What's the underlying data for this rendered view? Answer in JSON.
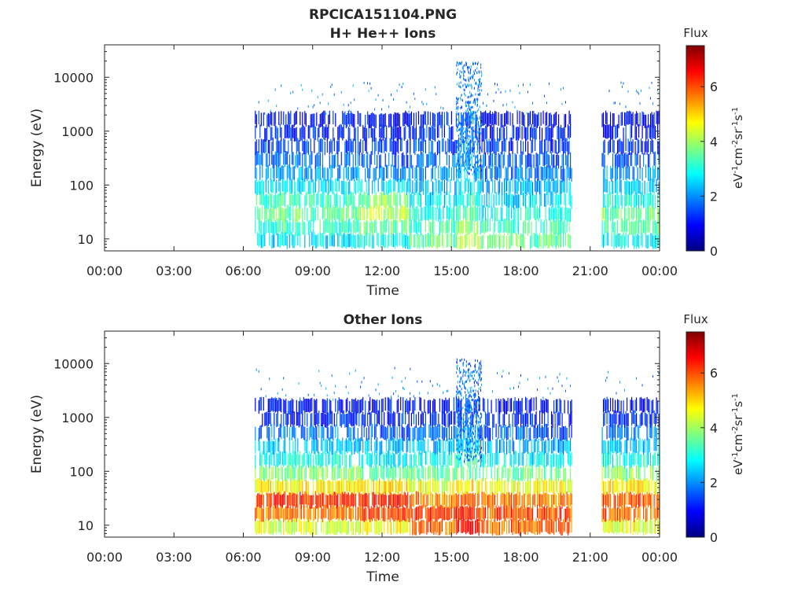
{
  "figure": {
    "title_line1": "RPCICA151104.PNG"
  },
  "colormap": {
    "name": "jet",
    "stops": [
      "#00007f",
      "#0000ff",
      "#007fff",
      "#00ffff",
      "#7fff7f",
      "#ffff00",
      "#ff7f00",
      "#ff0000",
      "#7f0000"
    ]
  },
  "chart_data": [
    {
      "type": "heatmap",
      "title": "H+ He++ Ions",
      "xlabel": "Time",
      "ylabel": "Energy (eV)",
      "x_tick_labels": [
        "00:00",
        "03:00",
        "06:00",
        "09:00",
        "12:00",
        "15:00",
        "18:00",
        "21:00",
        "00:00"
      ],
      "x_range_hours": [
        0,
        24
      ],
      "y_scale": "log",
      "y_tick_values": [
        10,
        100,
        1000,
        10000
      ],
      "y_tick_labels": [
        "10",
        "100",
        "1000",
        "10000"
      ],
      "y_range": [
        6,
        40000
      ],
      "colorbar": {
        "title": "Flux",
        "unit_label": "eV-1cm-2sr-1s-1",
        "ticks": [
          0,
          2,
          4,
          6
        ],
        "tick_labels": [
          "0",
          "2",
          "4",
          "6"
        ],
        "range": [
          0,
          7.5
        ]
      },
      "data_gaps_hours": [
        [
          0,
          6.5
        ],
        [
          20.2,
          21.5
        ]
      ],
      "data_segments": [
        {
          "start": 6.5,
          "end": 11.0,
          "levels": [
            2.6,
            3.2,
            3.6,
            3.3,
            2.6,
            2.1,
            1.8,
            1.5,
            1.2,
            1.0
          ]
        },
        {
          "start": 11.0,
          "end": 13.2,
          "levels": [
            2.8,
            3.6,
            4.2,
            3.8,
            2.6,
            2.0,
            1.6,
            1.3,
            1.1,
            1.0
          ]
        },
        {
          "start": 13.2,
          "end": 15.2,
          "levels": [
            3.6,
            3.3,
            3.0,
            2.6,
            2.2,
            2.0,
            1.8,
            1.6,
            1.4,
            1.2
          ]
        },
        {
          "start": 15.2,
          "end": 16.2,
          "levels": [
            4.4,
            3.8,
            3.4,
            3.0,
            2.6,
            2.4,
            2.2,
            2.0,
            1.8,
            1.6
          ]
        },
        {
          "start": 16.2,
          "end": 20.2,
          "levels": [
            3.6,
            3.3,
            3.0,
            2.6,
            2.2,
            1.9,
            1.6,
            1.3,
            1.1,
            0.9
          ]
        },
        {
          "start": 21.5,
          "end": 24.0,
          "levels": [
            2.8,
            3.4,
            3.6,
            3.0,
            2.4,
            2.0,
            1.6,
            1.3,
            1.1,
            0.9
          ]
        }
      ]
    },
    {
      "type": "heatmap",
      "title": "Other Ions",
      "xlabel": "Time",
      "ylabel": "Energy (eV)",
      "x_tick_labels": [
        "00:00",
        "03:00",
        "06:00",
        "09:00",
        "12:00",
        "15:00",
        "18:00",
        "21:00",
        "00:00"
      ],
      "x_range_hours": [
        0,
        24
      ],
      "y_scale": "log",
      "y_tick_values": [
        10,
        100,
        1000,
        10000
      ],
      "y_tick_labels": [
        "10",
        "100",
        "1000",
        "10000"
      ],
      "y_range": [
        6,
        40000
      ],
      "colorbar": {
        "title": "Flux",
        "unit_label": "eV-1cm-2sr-1s-1",
        "ticks": [
          0,
          2,
          4,
          6
        ],
        "tick_labels": [
          "0",
          "2",
          "4",
          "6"
        ],
        "range": [
          0,
          7.5
        ]
      },
      "data_gaps_hours": [
        [
          0,
          6.5
        ],
        [
          20.2,
          21.5
        ]
      ],
      "data_segments": [
        {
          "start": 6.5,
          "end": 11.0,
          "levels": [
            4.4,
            5.6,
            6.2,
            4.8,
            3.8,
            3.0,
            2.4,
            1.8,
            1.3,
            1.0
          ]
        },
        {
          "start": 11.0,
          "end": 13.2,
          "levels": [
            4.6,
            6.0,
            6.4,
            5.0,
            3.6,
            2.8,
            2.2,
            1.6,
            1.2,
            1.0
          ]
        },
        {
          "start": 13.2,
          "end": 15.2,
          "levels": [
            5.8,
            6.2,
            5.6,
            4.6,
            3.6,
            3.0,
            2.4,
            1.8,
            1.3,
            1.0
          ]
        },
        {
          "start": 15.2,
          "end": 16.2,
          "levels": [
            6.6,
            6.4,
            5.8,
            4.8,
            3.8,
            3.2,
            2.6,
            2.0,
            1.6,
            1.3
          ]
        },
        {
          "start": 16.2,
          "end": 20.2,
          "levels": [
            5.8,
            6.0,
            5.6,
            4.6,
            3.6,
            2.8,
            2.2,
            1.6,
            1.2,
            1.0
          ]
        },
        {
          "start": 21.5,
          "end": 24.0,
          "levels": [
            4.6,
            5.8,
            6.0,
            4.8,
            3.8,
            3.0,
            2.4,
            1.8,
            1.3,
            1.0
          ]
        }
      ]
    }
  ]
}
